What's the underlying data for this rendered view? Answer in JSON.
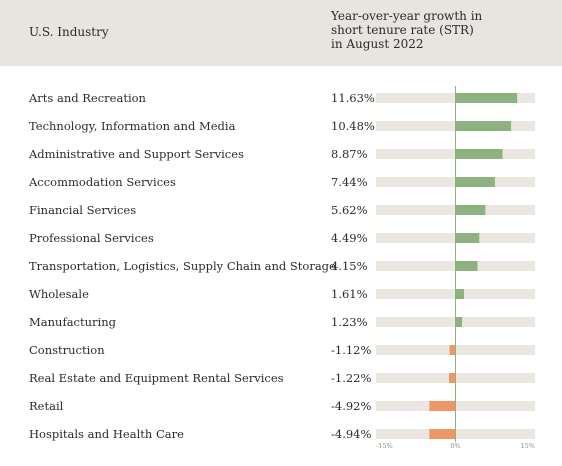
{
  "header": {
    "industry_label": "U.S. Industry",
    "metric_lines": [
      "Year-over-year growth in",
      "short tenure rate (STR)",
      "in August 2022"
    ]
  },
  "colors": {
    "header_bg": "#e8e4df",
    "track": "#ebe6df",
    "positive": "#8db27f",
    "negative": "#ef9566",
    "zero_line": "#8db27f"
  },
  "chart_data": {
    "type": "bar",
    "orientation": "horizontal",
    "title": "",
    "xlabel": "",
    "ylabel": "U.S. Industry",
    "xlim": [
      -15,
      15
    ],
    "grid": false,
    "categories": [
      "Arts and Recreation",
      "Technology, Information and Media",
      "Administrative and Support Services",
      "Accommodation Services",
      "Financial Services",
      "Professional Services",
      "Transportation, Logistics, Supply Chain and Storage",
      "Wholesale",
      "Manufacturing",
      "Construction",
      "Real Estate and Equipment Rental Services",
      "Retail",
      "Hospitals and Health Care"
    ],
    "values": [
      11.63,
      10.48,
      8.87,
      7.44,
      5.62,
      4.49,
      4.15,
      1.61,
      1.23,
      -1.12,
      -1.22,
      -4.92,
      -4.94
    ],
    "value_labels": [
      "11.63%",
      "10.48%",
      "8.87%",
      "7.44%",
      "5.62%",
      "4.49%",
      "4.15%",
      "1.61%",
      "1.23%",
      "-1.12%",
      "-1.22%",
      "-4.92%",
      "-4.94%"
    ],
    "x_ticks": [
      -15,
      0,
      15
    ],
    "x_tick_labels": [
      "-15%",
      "0%",
      "15%"
    ]
  }
}
